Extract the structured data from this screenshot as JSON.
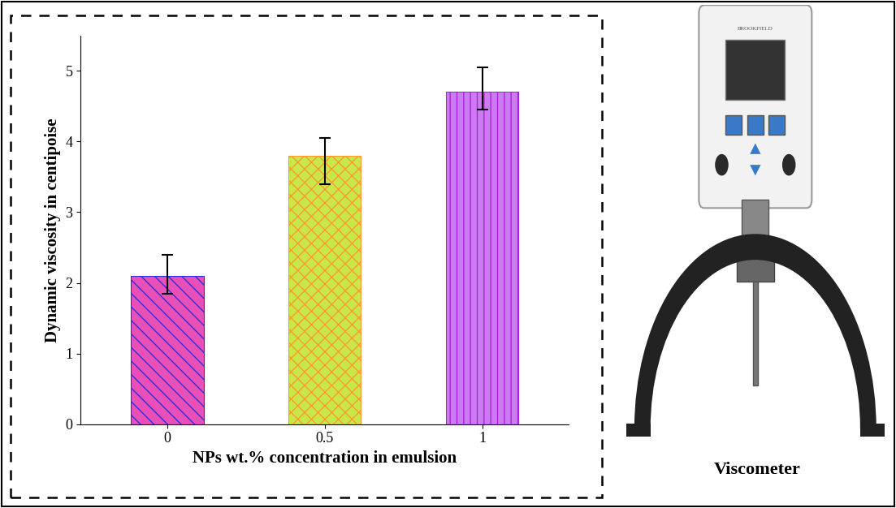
{
  "chart_data": {
    "type": "bar",
    "categories": [
      "0",
      "0.5",
      "1"
    ],
    "values": [
      2.1,
      3.8,
      4.7
    ],
    "error_minus": [
      0.25,
      0.4,
      0.25
    ],
    "error_plus": [
      0.3,
      0.25,
      0.35
    ],
    "x_label": "NPs wt.% concentration in emulsion",
    "y_label": "Dynamic viscosity in centipoise",
    "colors": [
      "#e850b8",
      "#c8e84a",
      "#cc7cf2"
    ],
    "ylim": [
      0,
      5.5
    ],
    "yticks": [
      0,
      1,
      2,
      3,
      4,
      5
    ],
    "grid": false
  },
  "image": {
    "label": "Viscometer",
    "device_brand": "BROOKFIELD"
  }
}
